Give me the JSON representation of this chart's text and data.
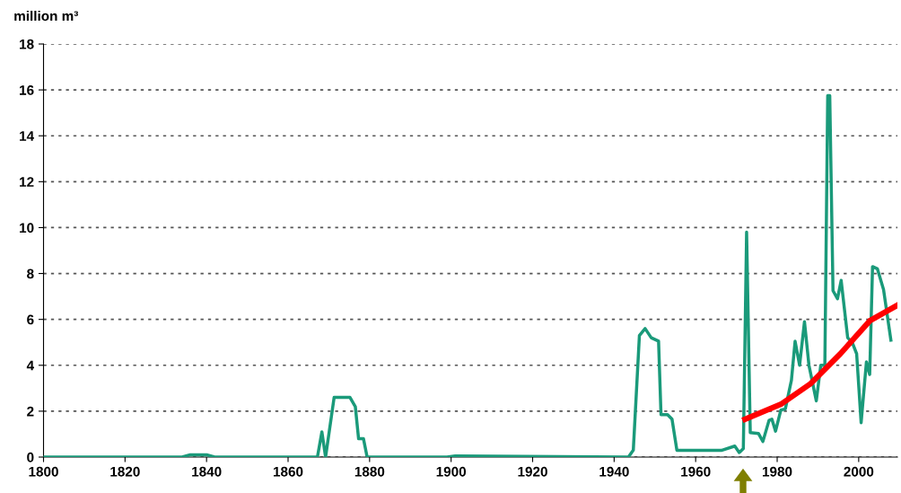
{
  "chart_data": {
    "type": "line",
    "ylabel": "million m³",
    "xlim": [
      1800,
      2009.5
    ],
    "xticks": [
      1800,
      1820,
      1840,
      1860,
      1880,
      1900,
      1920,
      1940,
      1960,
      1980,
      2000
    ],
    "ylim": [
      0,
      18
    ],
    "yticks": [
      0,
      2,
      4,
      6,
      8,
      10,
      12,
      14,
      16,
      18
    ],
    "grid": "y",
    "line_style": "solid",
    "marker": "none",
    "series": [
      {
        "color": "#1a9a7a",
        "x": [
          1800,
          1834,
          1836,
          1840,
          1842,
          1867.2,
          1868.3,
          1869.2,
          1871.3,
          1875.2,
          1876.5,
          1877.3,
          1878.5,
          1879.4,
          1899,
          1901,
          1943.5,
          1944.7,
          1946.2,
          1947.6,
          1949.1,
          1950.9,
          1951.5,
          1953.1,
          1954.2,
          1955.4,
          1966.3,
          1969.6,
          1970.7,
          1971.7,
          1972.5,
          1973.4,
          1975.4,
          1976.5,
          1978.0,
          1978.7,
          1979.6,
          1980.9,
          1982.0,
          1983.5,
          1984.4,
          1985.5,
          1986.7,
          1987.8,
          1989.6,
          1990.7,
          1991.7,
          1992.4,
          1992.9,
          1993.7,
          1994.8,
          1995.7,
          1997.3,
          1998.4,
          1999.5,
          2000.6,
          2001.9,
          2002.7,
          2003.4,
          2004.6,
          2006.1,
          2007.9
        ],
        "values": [
          0,
          0,
          0.1,
          0.1,
          0,
          0,
          1.1,
          0,
          2.6,
          2.6,
          2.2,
          0.8,
          0.8,
          0,
          0,
          0.05,
          0,
          0.3,
          5.3,
          5.6,
          5.2,
          5.05,
          1.85,
          1.85,
          1.65,
          0.29,
          0.29,
          0.48,
          0.2,
          0.37,
          9.8,
          1.07,
          1.03,
          0.68,
          1.6,
          1.65,
          1.13,
          2.05,
          2.1,
          3.35,
          5.05,
          4.0,
          5.9,
          4.0,
          2.45,
          4.0,
          4.0,
          15.75,
          15.75,
          7.25,
          6.9,
          7.7,
          5.2,
          5.0,
          4.5,
          1.5,
          4.15,
          3.6,
          8.3,
          8.2,
          7.3,
          5.1
        ]
      },
      {
        "color": "#ff0000",
        "x": [
          1972.1,
          1980.9,
          1988.2,
          1995.5,
          2002.8,
          2009.3
        ],
        "values": [
          1.65,
          2.3,
          3.2,
          4.5,
          5.95,
          6.6
        ]
      }
    ]
  }
}
